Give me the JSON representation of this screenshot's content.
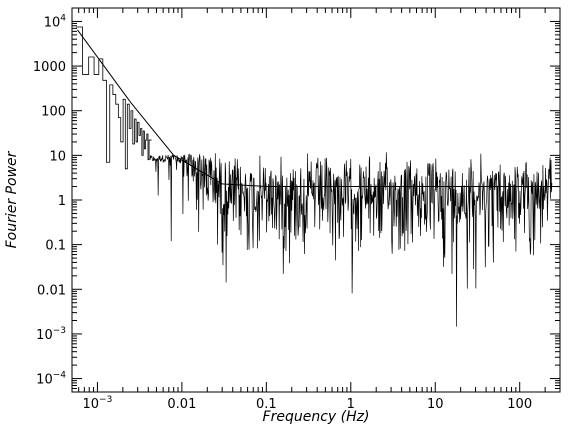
{
  "chart_data": {
    "type": "line",
    "title": "",
    "xlabel": "Frequency (Hz)",
    "ylabel": "Fourier Power",
    "x_scale": "log",
    "y_scale": "log",
    "xlim": [
      0.0005,
      300
    ],
    "ylim": [
      5e-05,
      20000
    ],
    "grid": false,
    "x_ticks": [
      {
        "value": 0.001,
        "base": "10",
        "exp": "−3"
      },
      {
        "value": 0.01,
        "label": "0.01"
      },
      {
        "value": 0.1,
        "label": "0.1"
      },
      {
        "value": 1,
        "label": "1"
      },
      {
        "value": 10,
        "label": "10"
      },
      {
        "value": 100,
        "label": "100"
      }
    ],
    "y_ticks": [
      {
        "value": 0.0001,
        "base": "10",
        "exp": "−4"
      },
      {
        "value": 0.001,
        "base": "10",
        "exp": "−3"
      },
      {
        "value": 0.01,
        "label": "0.01"
      },
      {
        "value": 0.1,
        "label": "0.1"
      },
      {
        "value": 1,
        "label": "1"
      },
      {
        "value": 10,
        "label": "10"
      },
      {
        "value": 100,
        "label": "100"
      },
      {
        "value": 1000,
        "label": "1000"
      },
      {
        "value": 10000,
        "base": "10",
        "exp": "4"
      }
    ],
    "series": [
      {
        "style": "steps",
        "color": "#000000",
        "low_frequency_points": [
          [
            0.00061,
            7500
          ],
          [
            0.00073,
            650
          ],
          [
            0.00085,
            1600
          ],
          [
            0.00098,
            650
          ],
          [
            0.0011,
            1450
          ],
          [
            0.00122,
            480
          ],
          [
            0.00134,
            7
          ],
          [
            0.00146,
            380
          ],
          [
            0.00159,
            230
          ],
          [
            0.00171,
            140
          ],
          [
            0.00183,
            70
          ],
          [
            0.00195,
            20
          ],
          [
            0.00208,
            180
          ],
          [
            0.0022,
            5
          ],
          [
            0.00232,
            140
          ],
          [
            0.00244,
            40
          ],
          [
            0.00256,
            100
          ],
          [
            0.00269,
            18
          ],
          [
            0.00281,
            65
          ],
          [
            0.00293,
            20
          ],
          [
            0.00305,
            55
          ],
          [
            0.00317,
            28
          ],
          [
            0.0033,
            40
          ],
          [
            0.00342,
            10
          ],
          [
            0.00354,
            35
          ],
          [
            0.00366,
            14
          ],
          [
            0.00378,
            22
          ],
          [
            0.00391,
            30
          ],
          [
            0.00403,
            8
          ],
          [
            0.00415,
            22
          ]
        ],
        "high_frequency_envelope": {
          "mean_power_at_0_1Hz": 2,
          "mean_power_at_300Hz": 2,
          "upper_envelope_at_300Hz": 20,
          "lower_envelope_at_300Hz": 5e-05
        }
      },
      {
        "style": "line",
        "color": "#000000",
        "model": "power_law",
        "points": [
          [
            0.00058,
            6500
          ],
          [
            0.0025,
            150
          ],
          [
            0.008,
            10
          ],
          [
            0.03,
            2.3
          ],
          [
            0.1,
            2
          ],
          [
            300,
            2
          ]
        ]
      }
    ]
  }
}
